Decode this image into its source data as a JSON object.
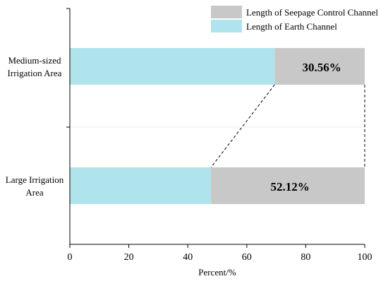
{
  "chart_data": {
    "type": "bar",
    "orientation": "horizontal",
    "stacked": true,
    "categories": [
      [
        "Medium-sized",
        "Irrigation Area"
      ],
      [
        "Large Irrigation",
        "Area"
      ]
    ],
    "series": [
      {
        "name": "Length of Earth Channel",
        "values": [
          69.44,
          47.88
        ],
        "color": "#b0e4ec"
      },
      {
        "name": "Length of Seepage Control Channel",
        "values": [
          30.56,
          52.12
        ],
        "color": "#c8c8c8"
      }
    ],
    "data_labels": [
      "30.56%",
      "52.12%"
    ],
    "xlabel": "Percent/%",
    "xlim": [
      0,
      100
    ],
    "xticks": [
      "0",
      "20",
      "40",
      "60",
      "80",
      "100"
    ],
    "legend_position": "top-right",
    "connector_lines": "dashed",
    "grid": false
  }
}
